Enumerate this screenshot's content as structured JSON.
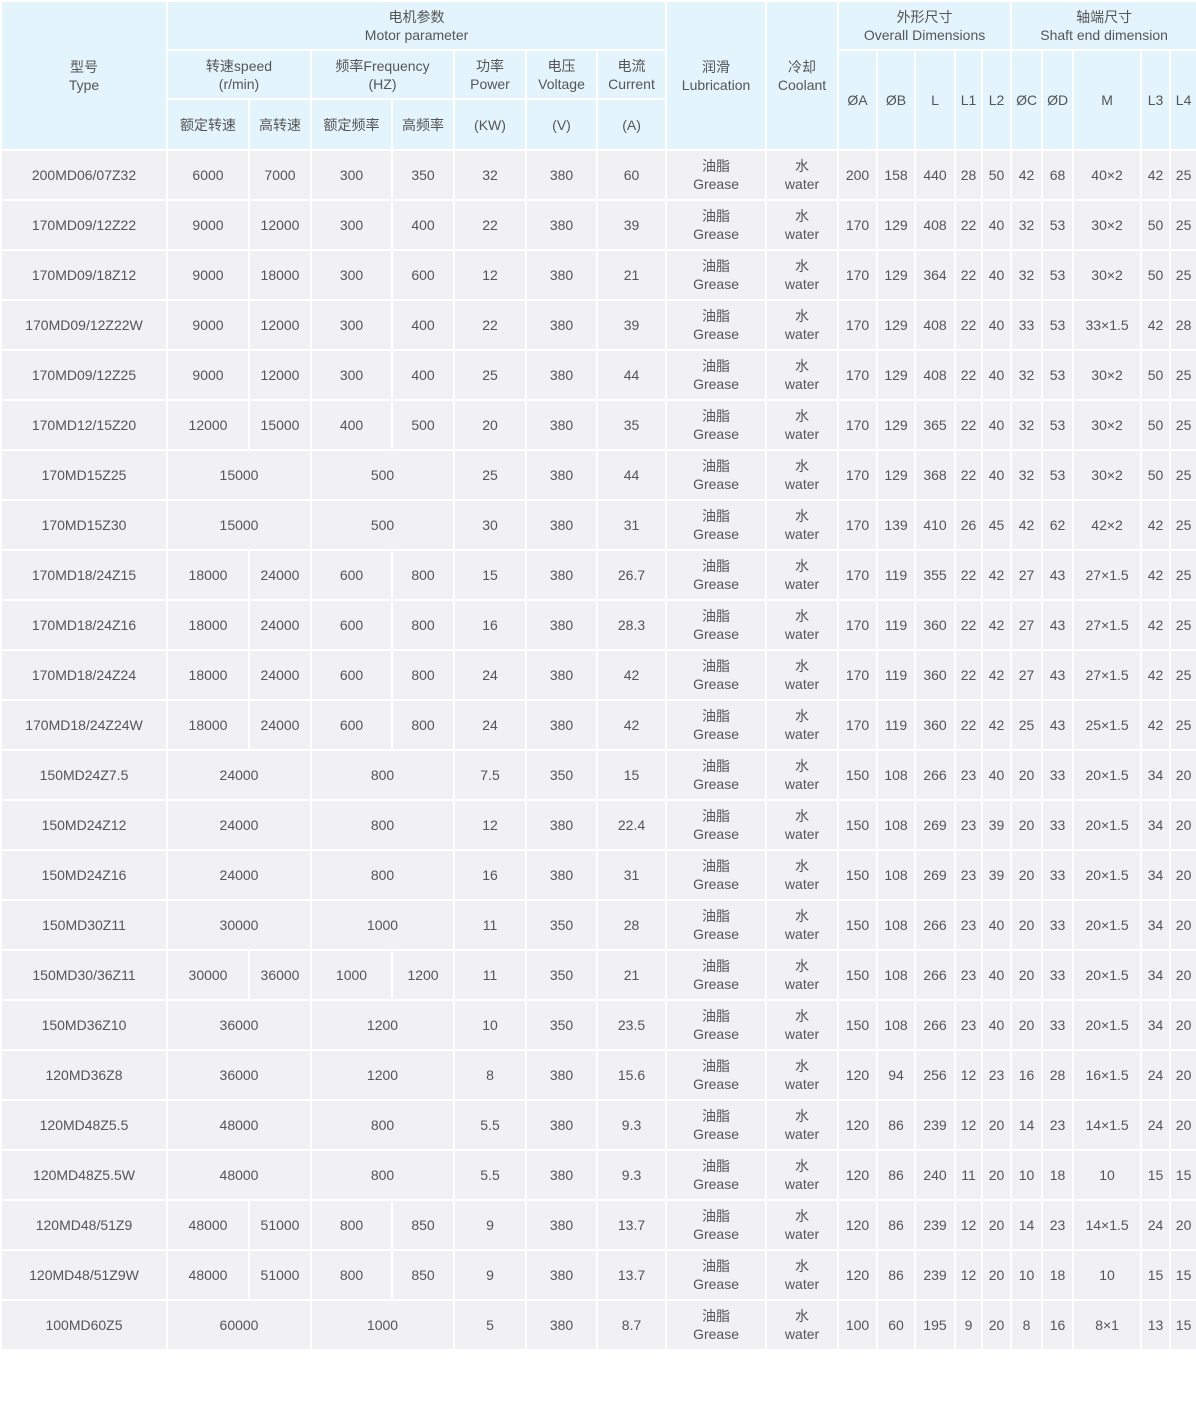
{
  "header": {
    "type": [
      "型号",
      "Type"
    ],
    "motor_parameter": [
      "电机参数",
      "Motor parameter"
    ],
    "speed": [
      "转速speed",
      "(r/min)"
    ],
    "frequency": [
      "频率Frequency",
      "(HZ)"
    ],
    "power": [
      "功率",
      "Power"
    ],
    "voltage": [
      "电压",
      "Voltage"
    ],
    "current": [
      "电流",
      "Current"
    ],
    "lubrication": [
      "润滑",
      "Lubrication"
    ],
    "coolant": [
      "冷却",
      "Coolant"
    ],
    "overall": [
      "外形尺寸",
      "Overall Dimensions"
    ],
    "shaft": [
      "轴端尺寸",
      "Shaft end dimension"
    ],
    "rated_speed": "额定转速",
    "high_speed": "高转速",
    "rated_freq": "额定频率",
    "high_freq": "高频率",
    "power_unit": "(KW)",
    "voltage_unit": "(V)",
    "current_unit": "(A)",
    "dims": [
      "ØA",
      "ØB",
      "L",
      "L1",
      "L2",
      "ØC",
      "ØD",
      "M",
      "L3",
      "L4"
    ]
  },
  "lubrication_value": [
    "油脂",
    "Grease"
  ],
  "coolant_value": [
    "水",
    "water"
  ],
  "rows": [
    {
      "type": "200MD06/07Z32",
      "speed": [
        "6000",
        "7000"
      ],
      "freq": [
        "300",
        "350"
      ],
      "power": "32",
      "voltage": "380",
      "current": "60",
      "dims": [
        "200",
        "158",
        "440",
        "28",
        "50",
        "42",
        "68",
        "40×2",
        "42",
        "25"
      ]
    },
    {
      "type": "170MD09/12Z22",
      "speed": [
        "9000",
        "12000"
      ],
      "freq": [
        "300",
        "400"
      ],
      "power": "22",
      "voltage": "380",
      "current": "39",
      "dims": [
        "170",
        "129",
        "408",
        "22",
        "40",
        "32",
        "53",
        "30×2",
        "50",
        "25"
      ]
    },
    {
      "type": "170MD09/18Z12",
      "speed": [
        "9000",
        "18000"
      ],
      "freq": [
        "300",
        "600"
      ],
      "power": "12",
      "voltage": "380",
      "current": "21",
      "dims": [
        "170",
        "129",
        "364",
        "22",
        "40",
        "32",
        "53",
        "30×2",
        "50",
        "25"
      ]
    },
    {
      "type": "170MD09/12Z22W",
      "speed": [
        "9000",
        "12000"
      ],
      "freq": [
        "300",
        "400"
      ],
      "power": "22",
      "voltage": "380",
      "current": "39",
      "dims": [
        "170",
        "129",
        "408",
        "22",
        "40",
        "33",
        "53",
        "33×1.5",
        "42",
        "28"
      ]
    },
    {
      "type": "170MD09/12Z25",
      "speed": [
        "9000",
        "12000"
      ],
      "freq": [
        "300",
        "400"
      ],
      "power": "25",
      "voltage": "380",
      "current": "44",
      "dims": [
        "170",
        "129",
        "408",
        "22",
        "40",
        "32",
        "53",
        "30×2",
        "50",
        "25"
      ]
    },
    {
      "type": "170MD12/15Z20",
      "speed": [
        "12000",
        "15000"
      ],
      "freq": [
        "400",
        "500"
      ],
      "power": "20",
      "voltage": "380",
      "current": "35",
      "dims": [
        "170",
        "129",
        "365",
        "22",
        "40",
        "32",
        "53",
        "30×2",
        "50",
        "25"
      ]
    },
    {
      "type": "170MD15Z25",
      "speed": [
        "15000"
      ],
      "freq": [
        "500"
      ],
      "power": "25",
      "voltage": "380",
      "current": "44",
      "dims": [
        "170",
        "129",
        "368",
        "22",
        "40",
        "32",
        "53",
        "30×2",
        "50",
        "25"
      ]
    },
    {
      "type": "170MD15Z30",
      "speed": [
        "15000"
      ],
      "freq": [
        "500"
      ],
      "power": "30",
      "voltage": "380",
      "current": "31",
      "dims": [
        "170",
        "139",
        "410",
        "26",
        "45",
        "42",
        "62",
        "42×2",
        "42",
        "25"
      ]
    },
    {
      "type": "170MD18/24Z15",
      "speed": [
        "18000",
        "24000"
      ],
      "freq": [
        "600",
        "800"
      ],
      "power": "15",
      "voltage": "380",
      "current": "26.7",
      "dims": [
        "170",
        "119",
        "355",
        "22",
        "42",
        "27",
        "43",
        "27×1.5",
        "42",
        "25"
      ]
    },
    {
      "type": "170MD18/24Z16",
      "speed": [
        "18000",
        "24000"
      ],
      "freq": [
        "600",
        "800"
      ],
      "power": "16",
      "voltage": "380",
      "current": "28.3",
      "dims": [
        "170",
        "119",
        "360",
        "22",
        "42",
        "27",
        "43",
        "27×1.5",
        "42",
        "25"
      ]
    },
    {
      "type": "170MD18/24Z24",
      "speed": [
        "18000",
        "24000"
      ],
      "freq": [
        "600",
        "800"
      ],
      "power": "24",
      "voltage": "380",
      "current": "42",
      "dims": [
        "170",
        "119",
        "360",
        "22",
        "42",
        "27",
        "43",
        "27×1.5",
        "42",
        "25"
      ]
    },
    {
      "type": "170MD18/24Z24W",
      "speed": [
        "18000",
        "24000"
      ],
      "freq": [
        "600",
        "800"
      ],
      "power": "24",
      "voltage": "380",
      "current": "42",
      "dims": [
        "170",
        "119",
        "360",
        "22",
        "42",
        "25",
        "43",
        "25×1.5",
        "42",
        "25"
      ]
    },
    {
      "type": "150MD24Z7.5",
      "speed": [
        "24000"
      ],
      "freq": [
        "800"
      ],
      "power": "7.5",
      "voltage": "350",
      "current": "15",
      "dims": [
        "150",
        "108",
        "266",
        "23",
        "40",
        "20",
        "33",
        "20×1.5",
        "34",
        "20"
      ]
    },
    {
      "type": "150MD24Z12",
      "speed": [
        "24000"
      ],
      "freq": [
        "800"
      ],
      "power": "12",
      "voltage": "380",
      "current": "22.4",
      "dims": [
        "150",
        "108",
        "269",
        "23",
        "39",
        "20",
        "33",
        "20×1.5",
        "34",
        "20"
      ]
    },
    {
      "type": "150MD24Z16",
      "speed": [
        "24000"
      ],
      "freq": [
        "800"
      ],
      "power": "16",
      "voltage": "380",
      "current": "31",
      "dims": [
        "150",
        "108",
        "269",
        "23",
        "39",
        "20",
        "33",
        "20×1.5",
        "34",
        "20"
      ]
    },
    {
      "type": "150MD30Z11",
      "speed": [
        "30000"
      ],
      "freq": [
        "1000"
      ],
      "power": "11",
      "voltage": "350",
      "current": "28",
      "dims": [
        "150",
        "108",
        "266",
        "23",
        "40",
        "20",
        "33",
        "20×1.5",
        "34",
        "20"
      ]
    },
    {
      "type": "150MD30/36Z11",
      "speed": [
        "30000",
        "36000"
      ],
      "freq": [
        "1000",
        "1200"
      ],
      "power": "11",
      "voltage": "350",
      "current": "21",
      "dims": [
        "150",
        "108",
        "266",
        "23",
        "40",
        "20",
        "33",
        "20×1.5",
        "34",
        "20"
      ]
    },
    {
      "type": "150MD36Z10",
      "speed": [
        "36000"
      ],
      "freq": [
        "1200"
      ],
      "power": "10",
      "voltage": "350",
      "current": "23.5",
      "dims": [
        "150",
        "108",
        "266",
        "23",
        "40",
        "20",
        "33",
        "20×1.5",
        "34",
        "20"
      ]
    },
    {
      "type": "120MD36Z8",
      "speed": [
        "36000"
      ],
      "freq": [
        "1200"
      ],
      "power": "8",
      "voltage": "380",
      "current": "15.6",
      "dims": [
        "120",
        "94",
        "256",
        "12",
        "23",
        "16",
        "28",
        "16×1.5",
        "24",
        "20"
      ]
    },
    {
      "type": "120MD48Z5.5",
      "speed": [
        "48000"
      ],
      "freq": [
        "800"
      ],
      "power": "5.5",
      "voltage": "380",
      "current": "9.3",
      "dims": [
        "120",
        "86",
        "239",
        "12",
        "20",
        "14",
        "23",
        "14×1.5",
        "24",
        "20"
      ]
    },
    {
      "type": "120MD48Z5.5W",
      "speed": [
        "48000"
      ],
      "freq": [
        "800"
      ],
      "power": "5.5",
      "voltage": "380",
      "current": "9.3",
      "dims": [
        "120",
        "86",
        "240",
        "11",
        "20",
        "10",
        "18",
        "10",
        "15",
        "15"
      ]
    },
    {
      "type": "120MD48/51Z9",
      "speed": [
        "48000",
        "51000"
      ],
      "freq": [
        "800",
        "850"
      ],
      "power": "9",
      "voltage": "380",
      "current": "13.7",
      "dims": [
        "120",
        "86",
        "239",
        "12",
        "20",
        "14",
        "23",
        "14×1.5",
        "24",
        "20"
      ]
    },
    {
      "type": "120MD48/51Z9W",
      "speed": [
        "48000",
        "51000"
      ],
      "freq": [
        "800",
        "850"
      ],
      "power": "9",
      "voltage": "380",
      "current": "13.7",
      "dims": [
        "120",
        "86",
        "239",
        "12",
        "20",
        "10",
        "18",
        "10",
        "15",
        "15"
      ]
    },
    {
      "type": "100MD60Z5",
      "speed": [
        "60000"
      ],
      "freq": [
        "1000"
      ],
      "power": "5",
      "voltage": "380",
      "current": "8.7",
      "dims": [
        "100",
        "60",
        "195",
        "9",
        "20",
        "8",
        "16",
        "8×1",
        "13",
        "15"
      ]
    }
  ]
}
